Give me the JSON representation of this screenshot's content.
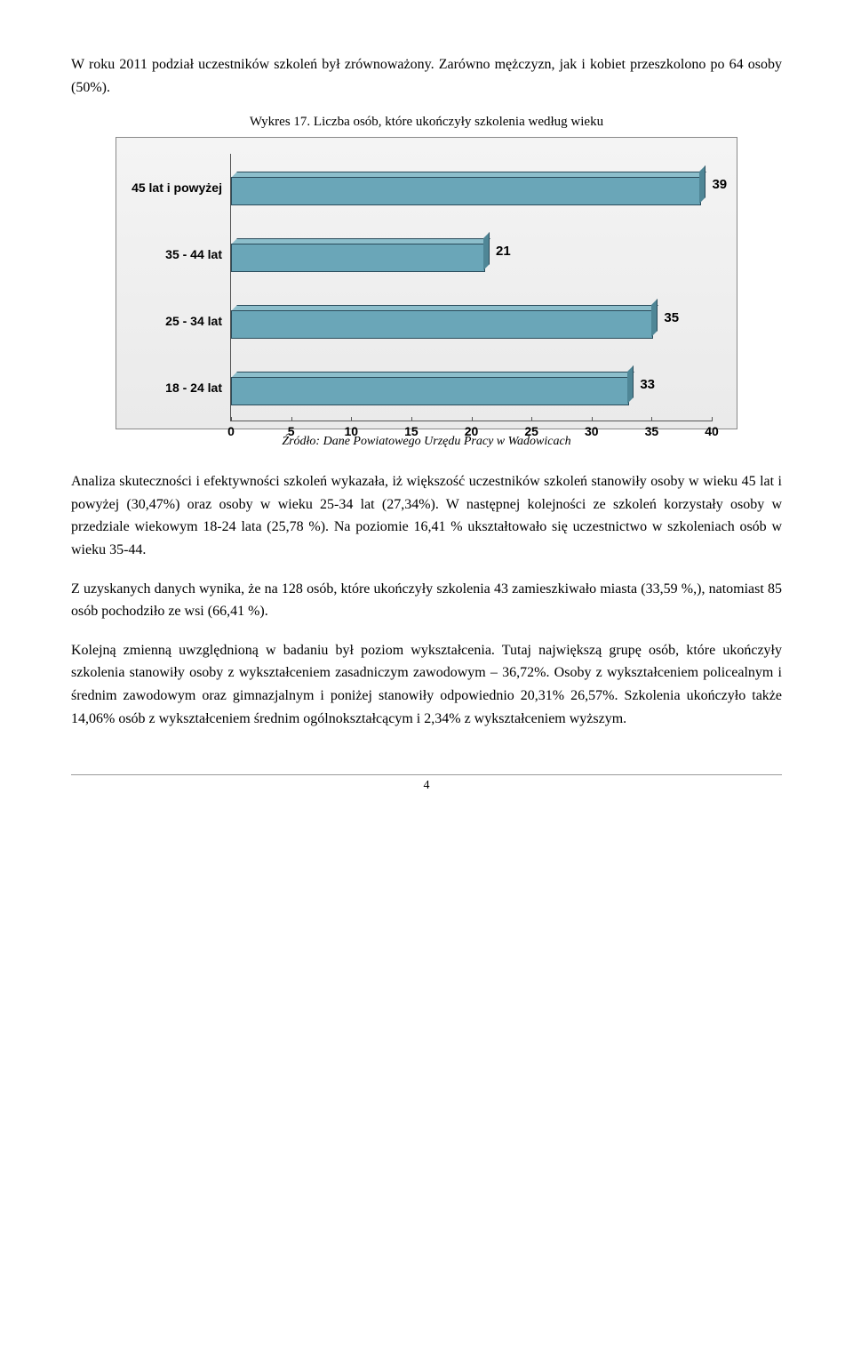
{
  "intro_para": "W roku 2011 podział uczestników szkoleń był zrównoważony. Zarówno mężczyzn, jak i kobiet przeszkolono po 64 osoby (50%).",
  "chart": {
    "title": "Wykres 17. Liczba osób, które ukończyły szkolenia według wieku",
    "type": "bar-horizontal",
    "categories": [
      "45 lat i powyżej",
      "35 - 44 lat",
      "25 - 34 lat",
      "18 - 24 lat"
    ],
    "values": [
      39,
      21,
      35,
      33
    ],
    "bar_color_front": "#6aa6b8",
    "bar_color_top": "#8cbecb",
    "bar_color_side": "#4f8696",
    "plot_background": "linear-gradient(#f4f4f4,#eaeaea)",
    "xmin": 0,
    "xmax": 40,
    "xtick_step": 5,
    "x_ticks": [
      0,
      5,
      10,
      15,
      20,
      25,
      30,
      35,
      40
    ],
    "label_font": "Arial",
    "label_fontsize": 14,
    "value_fontsize": 15
  },
  "source_line": "Źródło: Dane Powiatowego Urzędu Pracy w Wadowicach",
  "para2": "Analiza skuteczności i efektywności szkoleń wykazała, iż większość uczestników szkoleń stanowiły osoby w wieku 45 lat i powyżej (30,47%) oraz osoby w wieku 25-34 lat (27,34%). W następnej kolejności ze szkoleń korzystały osoby w przedziale wiekowym 18-24 lata (25,78 %). Na poziomie 16,41 % ukształtowało się uczestnictwo w szkoleniach osób w wieku 35-44.",
  "para3": "Z uzyskanych danych wynika, że na 128 osób, które ukończyły szkolenia 43 zamieszkiwało miasta  (33,59 %,), natomiast 85 osób pochodziło ze wsi (66,41 %).",
  "para4": "Kolejną zmienną uwzględnioną w badaniu był poziom wykształcenia. Tutaj największą grupę osób, które ukończyły szkolenia stanowiły osoby z wykształceniem zasadniczym zawodowym – 36,72%. Osoby z wykształceniem policealnym i średnim zawodowym oraz gimnazjalnym i poniżej stanowiły odpowiednio 20,31% 26,57%. Szkolenia ukończyło także 14,06% osób z wykształceniem średnim ogólnokształcącym i 2,34% z wykształceniem wyższym.",
  "page_number": "4"
}
